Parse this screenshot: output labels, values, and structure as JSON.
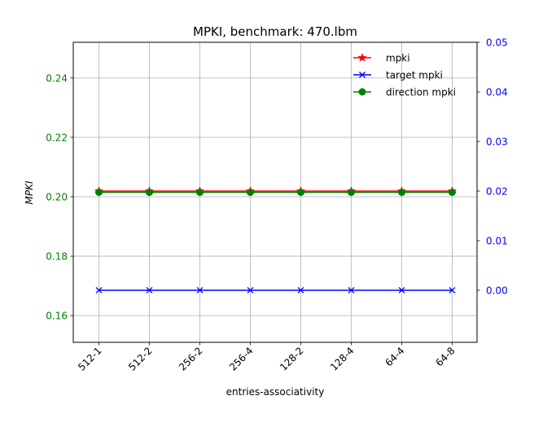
{
  "chart_data": {
    "type": "line",
    "title": "MPKI, benchmark: 470.lbm",
    "xlabel": "entries-associativity",
    "ylabel": "MPKI",
    "categories": [
      "512-1",
      "512-2",
      "256-2",
      "256-4",
      "128-2",
      "128-4",
      "64-4",
      "64-8"
    ],
    "left_axis": {
      "ylim": [
        0.151,
        0.252
      ],
      "ticks": [
        0.16,
        0.18,
        0.2,
        0.22,
        0.24
      ],
      "tick_labels": [
        "0.16",
        "0.18",
        "0.20",
        "0.22",
        "0.24"
      ],
      "color": "#008000"
    },
    "right_axis": {
      "ylim": [
        -0.0105,
        0.05
      ],
      "ticks": [
        0.0,
        0.01,
        0.02,
        0.03,
        0.04,
        0.05
      ],
      "tick_labels": [
        "0.00",
        "0.01",
        "0.02",
        "0.03",
        "0.04",
        "0.05"
      ],
      "color": "#0000ff"
    },
    "grid": true,
    "legend_position": "top-right",
    "series": [
      {
        "name": "mpki",
        "axis": "right",
        "color": "#ff0000",
        "marker": "star",
        "values": [
          0.02,
          0.02,
          0.02,
          0.02,
          0.02,
          0.02,
          0.02,
          0.02
        ]
      },
      {
        "name": "target mpki",
        "axis": "right",
        "color": "#0000ff",
        "marker": "x",
        "values": [
          0,
          0,
          0,
          0,
          0,
          0,
          0,
          0
        ]
      },
      {
        "name": "direction mpki",
        "axis": "left",
        "color": "#008000",
        "marker": "circle",
        "values": [
          0.2015,
          0.2015,
          0.2015,
          0.2015,
          0.2015,
          0.2015,
          0.2015,
          0.2015
        ]
      }
    ]
  }
}
